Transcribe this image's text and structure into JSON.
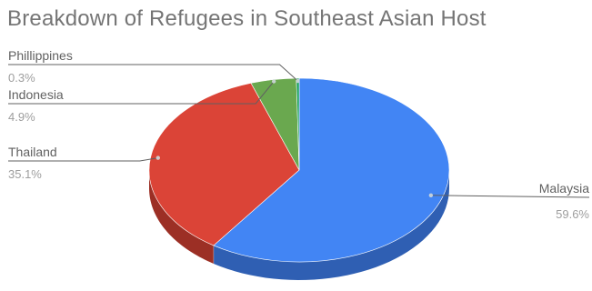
{
  "chart_data": {
    "type": "pie",
    "title": "Breakdown of Refugees in Southeast Asian Host",
    "style": "3d",
    "slices": [
      {
        "label": "Malaysia",
        "value": 59.6,
        "display": "59.6%",
        "color": "#4285f4",
        "side_color": "#2f5fb3",
        "label_side": "right"
      },
      {
        "label": "Thailand",
        "value": 35.1,
        "display": "35.1%",
        "color": "#db4437",
        "side_color": "#9c2f25",
        "label_side": "left"
      },
      {
        "label": "Indonesia",
        "value": 4.9,
        "display": "4.9%",
        "color": "#6aa84f",
        "side_color": "#4a7a36",
        "label_side": "left"
      },
      {
        "label": "Phillippines",
        "value": 0.3,
        "display": "0.3%",
        "color": "#0f9d58",
        "side_color": "#0a6e3e",
        "label_side": "left"
      }
    ],
    "colors": {
      "title": "#757575",
      "label": "#616161",
      "value": "#9e9e9e",
      "leader": "#616161"
    }
  }
}
